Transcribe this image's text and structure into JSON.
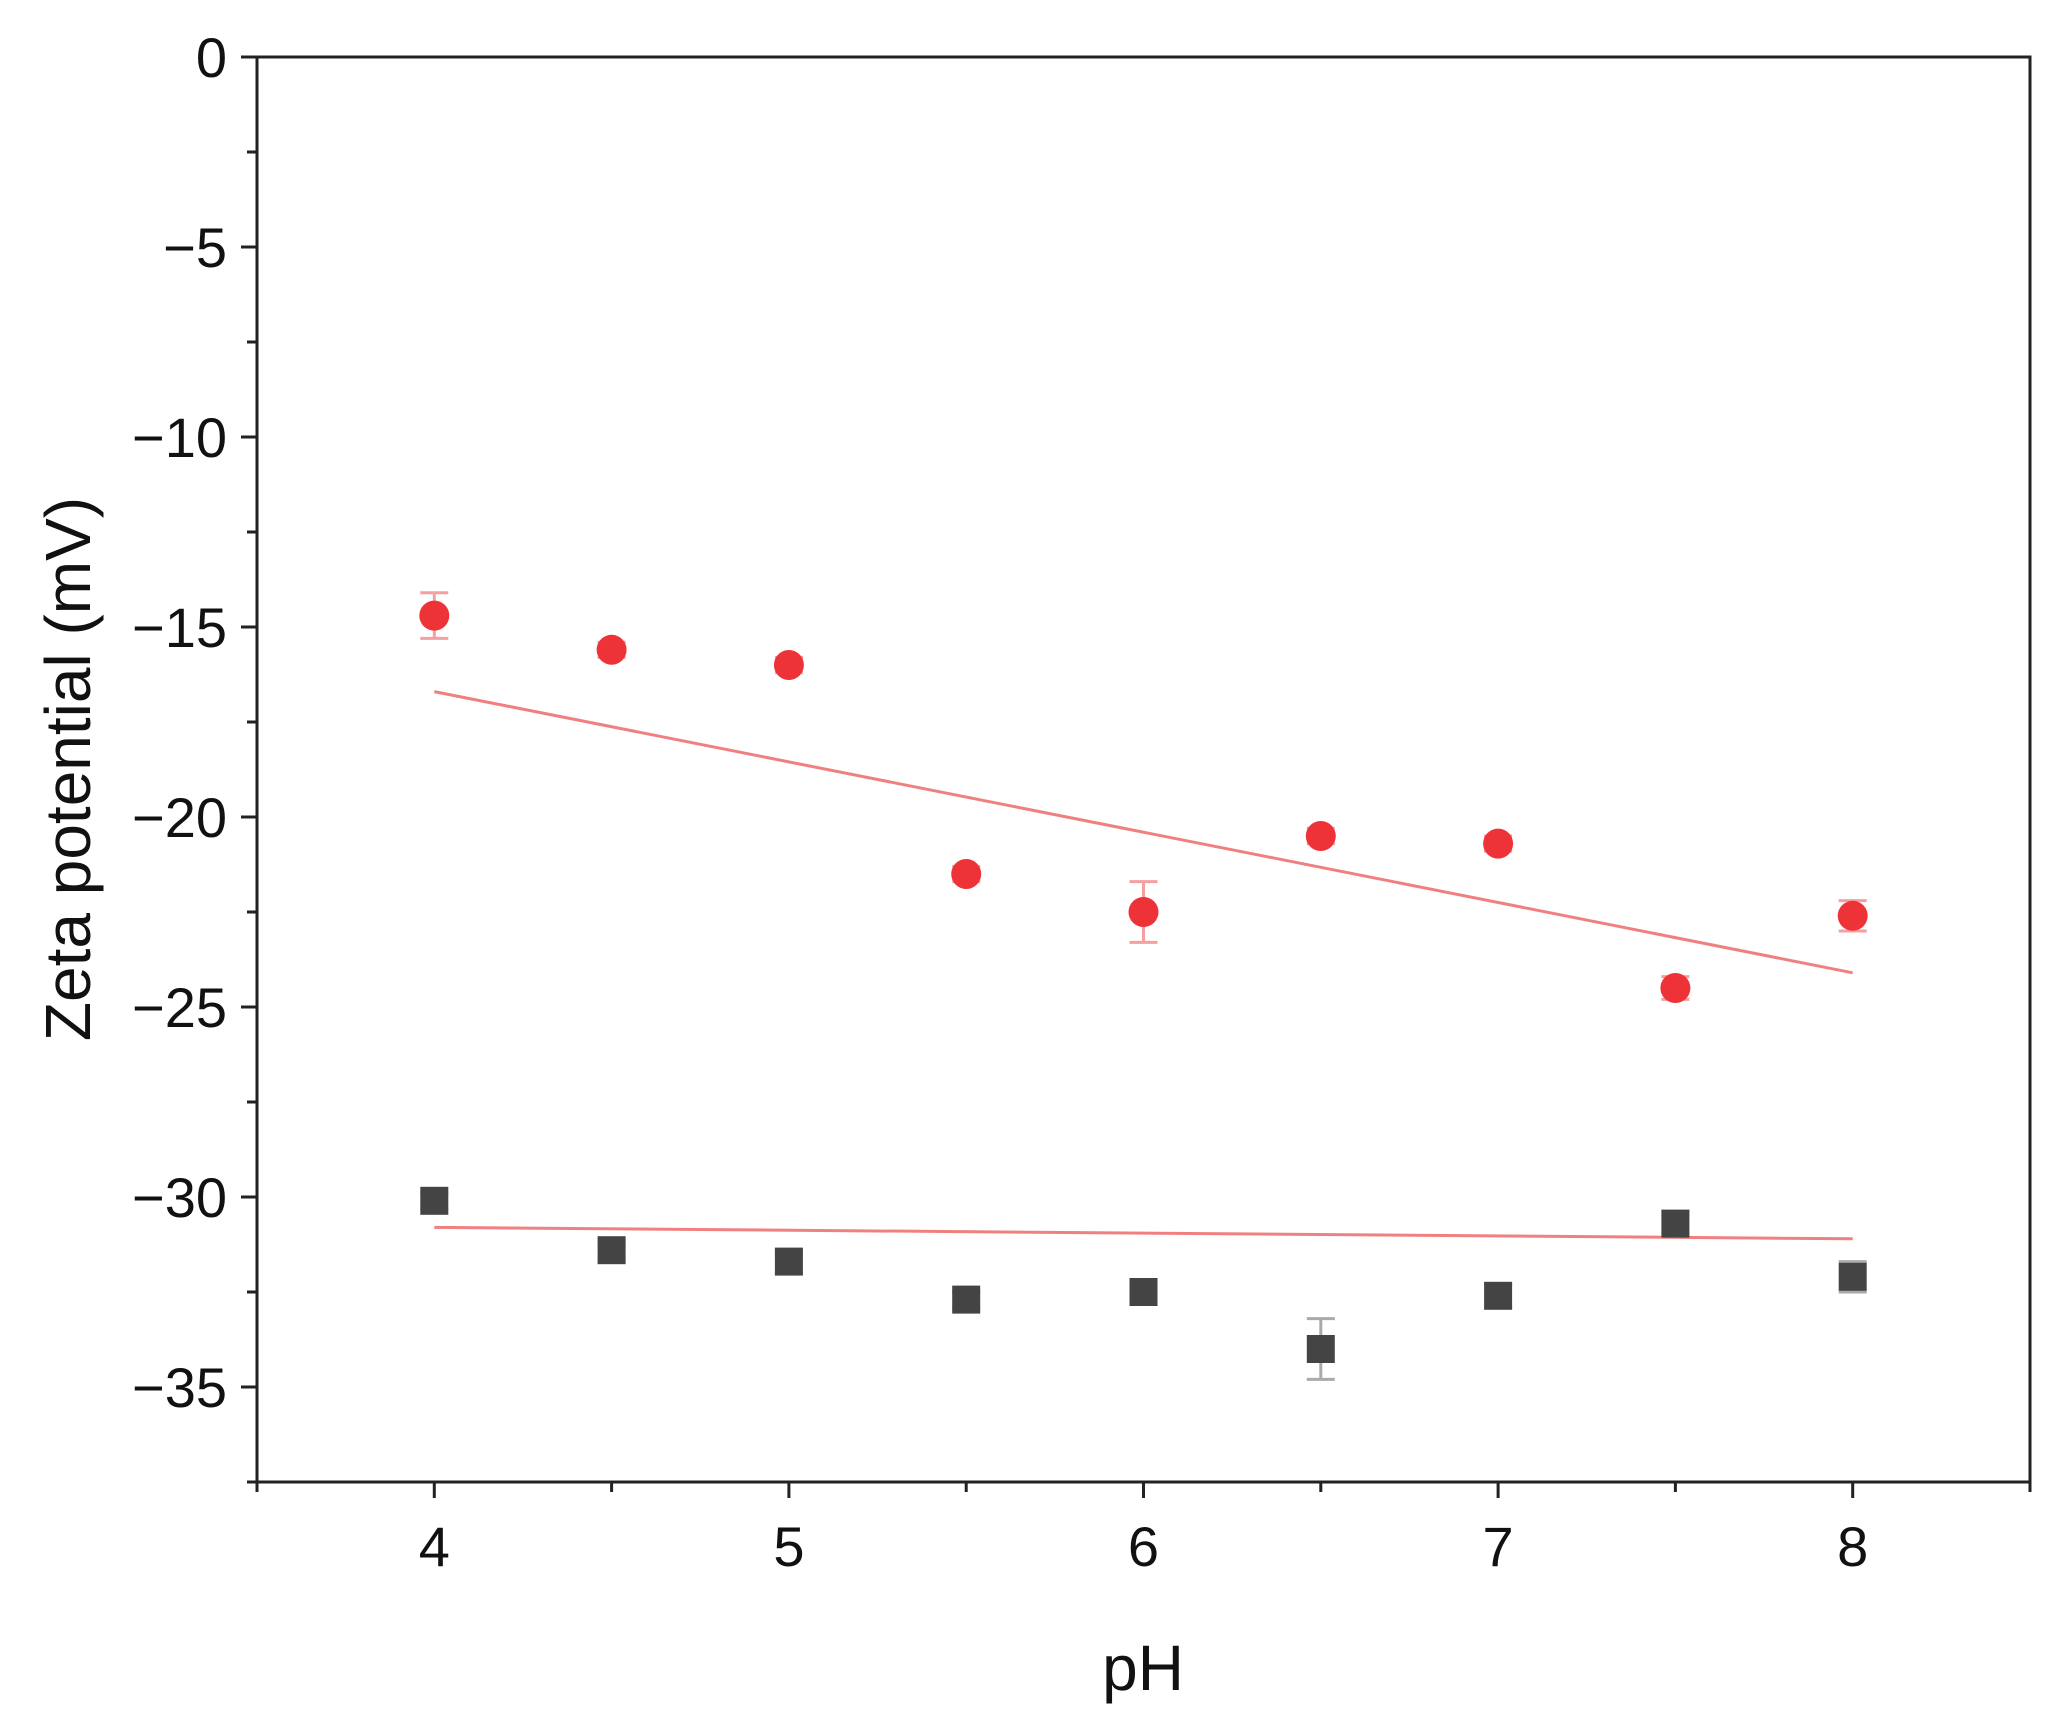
{
  "chart_data": {
    "type": "scatter",
    "title": "",
    "xlabel": "pH",
    "ylabel": "Zeta potential (mV)",
    "xlim": [
      3.5,
      8.5
    ],
    "ylim": [
      -37.5,
      0
    ],
    "x_ticks": [
      4,
      5,
      6,
      7,
      8
    ],
    "x_tick_labels": [
      "4",
      "5",
      "6",
      "7",
      "8"
    ],
    "x_minor_ticks": [
      3.5,
      4.5,
      5.5,
      6.5,
      7.5,
      8.5
    ],
    "y_ticks": [
      0,
      -5,
      -10,
      -15,
      -20,
      -25,
      -30,
      -35
    ],
    "y_tick_labels": [
      "0",
      "−5",
      "−10",
      "−15",
      "−20",
      "−25",
      "−30",
      "−35"
    ],
    "y_minor_ticks": [
      -2.5,
      -7.5,
      -12.5,
      -17.5,
      -22.5,
      -27.5,
      -32.5,
      -37.5
    ],
    "grid": false,
    "legend": "none",
    "series": [
      {
        "marker": "circle",
        "color": "#ee3338",
        "x": [
          4,
          4.5,
          5,
          5.5,
          6,
          6.5,
          7,
          7.5,
          8
        ],
        "y": [
          -14.7,
          -15.6,
          -16.0,
          -21.5,
          -22.5,
          -20.5,
          -20.7,
          -24.5,
          -22.6
        ],
        "err": [
          0.6,
          0.2,
          0.2,
          0.2,
          0.8,
          0.2,
          0.2,
          0.3,
          0.4
        ],
        "fit": {
          "x": [
            4,
            8
          ],
          "y": [
            -16.7,
            -24.1
          ],
          "color": "#f08080"
        }
      },
      {
        "marker": "square",
        "color": "#444444",
        "x": [
          4,
          4.5,
          5,
          5.5,
          6,
          6.5,
          7,
          7.5,
          8
        ],
        "y": [
          -30.1,
          -31.4,
          -31.7,
          -32.7,
          -32.5,
          -34.0,
          -32.6,
          -30.7,
          -32.1
        ],
        "err": [
          0.2,
          0.2,
          0.3,
          0.2,
          0.2,
          0.8,
          0.3,
          0.2,
          0.4
        ],
        "fit": {
          "x": [
            4,
            8
          ],
          "y": [
            -30.8,
            -31.1
          ],
          "color": "#f08080"
        }
      }
    ]
  }
}
